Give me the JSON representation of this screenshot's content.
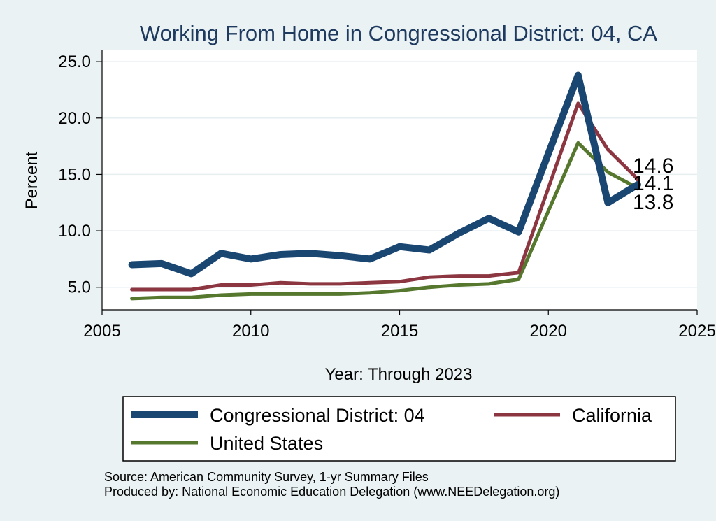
{
  "colors": {
    "background": "#eaf2f3",
    "plot_background": "#ffffff",
    "title": "#1e3a5f",
    "grid": "#e6eef0"
  },
  "chart_data": {
    "type": "line",
    "title": "Working From Home in Congressional District: 04, CA",
    "xlabel": "Year: Through 2023",
    "ylabel": "Percent",
    "xlim": [
      2005,
      2025
    ],
    "ylim": [
      3.0,
      26.0
    ],
    "xticks": [
      2005,
      2010,
      2015,
      2020,
      2025
    ],
    "yticks": [
      5.0,
      10.0,
      15.0,
      20.0,
      25.0
    ],
    "ytick_labels": [
      "5.0",
      "10.0",
      "15.0",
      "20.0",
      "25.0"
    ],
    "grid": "horizontal",
    "legend_position": "bottom",
    "x": [
      2006,
      2007,
      2008,
      2009,
      2010,
      2011,
      2012,
      2013,
      2014,
      2015,
      2016,
      2017,
      2018,
      2019,
      2021,
      2022,
      2023
    ],
    "series": [
      {
        "name": "Congressional District: 04",
        "color": "#1a4672",
        "values": [
          7.0,
          7.1,
          6.2,
          8.0,
          7.5,
          7.9,
          8.0,
          7.8,
          7.5,
          8.6,
          8.3,
          9.8,
          11.1,
          9.9,
          23.8,
          12.5,
          14.1
        ],
        "end_label": "14.1"
      },
      {
        "name": "California",
        "color": "#8c3641",
        "values": [
          4.8,
          4.8,
          4.8,
          5.2,
          5.2,
          5.4,
          5.3,
          5.3,
          5.4,
          5.5,
          5.9,
          6.0,
          6.0,
          6.3,
          21.3,
          17.2,
          14.6
        ],
        "end_label": "14.6"
      },
      {
        "name": "United States",
        "color": "#56782e",
        "values": [
          4.0,
          4.1,
          4.1,
          4.3,
          4.4,
          4.4,
          4.4,
          4.4,
          4.5,
          4.7,
          5.0,
          5.2,
          5.3,
          5.7,
          17.8,
          15.2,
          13.8
        ],
        "end_label": "13.8"
      }
    ],
    "notes": [
      "Source: American Community Survey, 1-yr Summary Files",
      "Produced by: National Economic Education Delegation (www.NEEDelegation.org)"
    ]
  }
}
